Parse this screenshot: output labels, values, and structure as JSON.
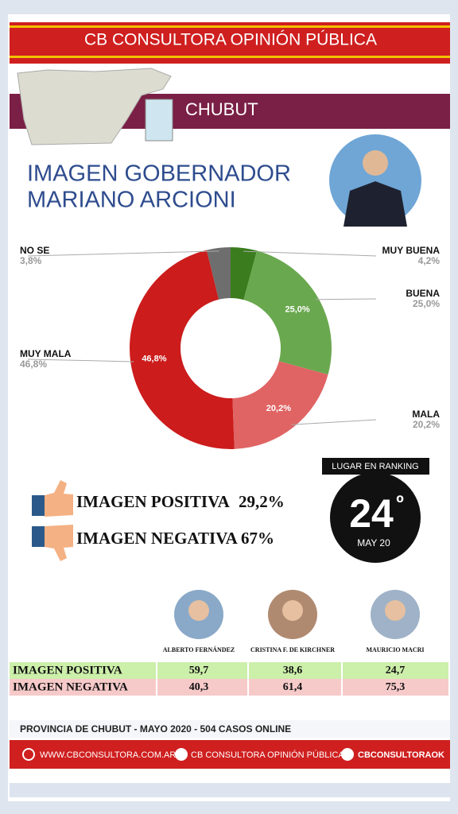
{
  "header": {
    "title": "CB CONSULTORA OPINIÓN PÚBLICA",
    "region": "CHUBUT"
  },
  "chart_data": {
    "type": "donut",
    "title_lines": [
      "IMAGEN GOBERNADOR",
      "MARIANO ARCIONI"
    ],
    "categories": [
      "MUY BUENA",
      "BUENA",
      "MALA",
      "MUY MALA",
      "NO SE"
    ],
    "values": [
      4.2,
      25.0,
      20.2,
      46.8,
      3.8
    ],
    "value_labels": [
      "4,2%",
      "25,0%",
      "20,2%",
      "46,8%",
      "3,8%"
    ],
    "colors": [
      "#3b7d1e",
      "#6aa84f",
      "#e06464",
      "#cc1c1c",
      "#6e6e6e"
    ]
  },
  "summary": [
    {
      "label": "IMAGEN POSITIVA",
      "value": "29,2%"
    },
    {
      "label": "IMAGEN NEGATIVA",
      "value": "67%"
    }
  ],
  "ranking": {
    "title": "LUGAR EN RANKING",
    "position": "24",
    "ordinal": "º",
    "date": "MAY 20"
  },
  "table": {
    "columns": [
      "ALBERTO FERNÁNDEZ",
      "CRISTINA F. DE KIRCHNER",
      "MAURICIO MACRI"
    ],
    "rows": [
      [
        "IMAGEN POSITIVA",
        "59,7",
        "38,6",
        "24,7"
      ],
      [
        "IMAGEN NEGATIVA",
        "40,3",
        "61,4",
        "75,3"
      ]
    ]
  },
  "footer": {
    "note": "PROVINCIA DE CHUBUT - MAYO 2020 -  504 CASOS ONLINE",
    "web": "WWW.CBCONSULTORA.COM.AR",
    "facebook": "CB CONSULTORA OPINIÓN PÚBLICA",
    "twitter": "CBCONSULTORAOK"
  }
}
